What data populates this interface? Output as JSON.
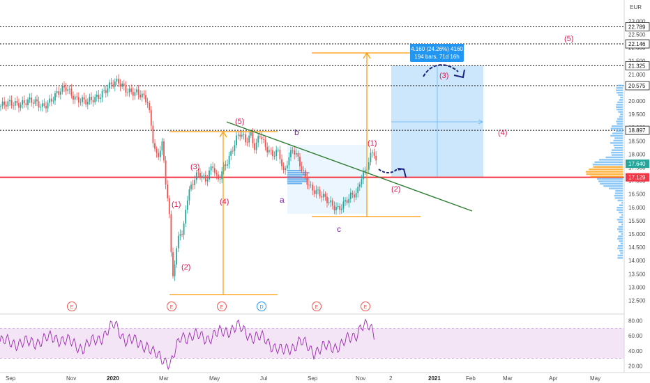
{
  "chart_data": {
    "type": "line",
    "currency": "EUR",
    "price_axis": {
      "range": [
        12.1,
        23.3
      ],
      "ticks": [
        "12.500",
        "13.000",
        "13.500",
        "14.000",
        "14.500",
        "15.000",
        "15.500",
        "16.000",
        "16.500",
        "17.000",
        "17.500",
        "18.000",
        "18.500",
        "19.000",
        "19.500",
        "20.000",
        "20.500",
        "21.000",
        "21.500",
        "22.000",
        "22.500",
        "23.000"
      ]
    },
    "time_axis": {
      "labels": [
        "Sep",
        "Nov",
        "2020",
        "Mar",
        "May",
        "Jul",
        "Sep",
        "Nov",
        "2",
        "2021",
        "Feb",
        "Mar",
        "Apr",
        "May"
      ],
      "bold": [
        "2020",
        "2021"
      ]
    },
    "rsi": {
      "range": [
        12,
        88
      ],
      "ticks": [
        "20.00",
        "40.00",
        "60.00",
        "80.00"
      ],
      "band": [
        30,
        70
      ]
    },
    "horizontal_levels": [
      {
        "value": 22.789,
        "label": "22.789",
        "style": "dotted"
      },
      {
        "value": 22.146,
        "label": "22.146",
        "style": "dotted"
      },
      {
        "value": 21.325,
        "label": "21.325",
        "style": "dotted"
      },
      {
        "value": 20.575,
        "label": "20.575",
        "style": "dotted"
      },
      {
        "value": 18.897,
        "label": "18.897",
        "style": "dotted"
      },
      {
        "value": 17.129,
        "label": "17.129",
        "style": "solid",
        "color": "#f23645"
      }
    ],
    "current_price": {
      "value": 17.64,
      "label": "17.640",
      "color": "#26a69a"
    },
    "wave_labels_red": [
      "(1)",
      "(2)",
      "(3)",
      "(4)",
      "(5)",
      "(1)",
      "(2)",
      "(3)",
      "(4)",
      "(5)"
    ],
    "wave_labels_purple": [
      "a",
      "b",
      "c"
    ],
    "measurement": {
      "line1": "4.160 (24.26%) 4160",
      "line2": "194 bars, 71d 16h"
    },
    "event_markers": [
      "E",
      "E",
      "E",
      "D",
      "E",
      "E"
    ],
    "colors": {
      "up": "#26a69a",
      "down": "#ef5350",
      "orange": "#ff9800",
      "trendline": "#2e7d32",
      "rsi_line": "#9c27b0",
      "rsi_band": "#f3e5f5",
      "projection_box": "#bbdefb",
      "arrow": "#1a237e"
    }
  }
}
